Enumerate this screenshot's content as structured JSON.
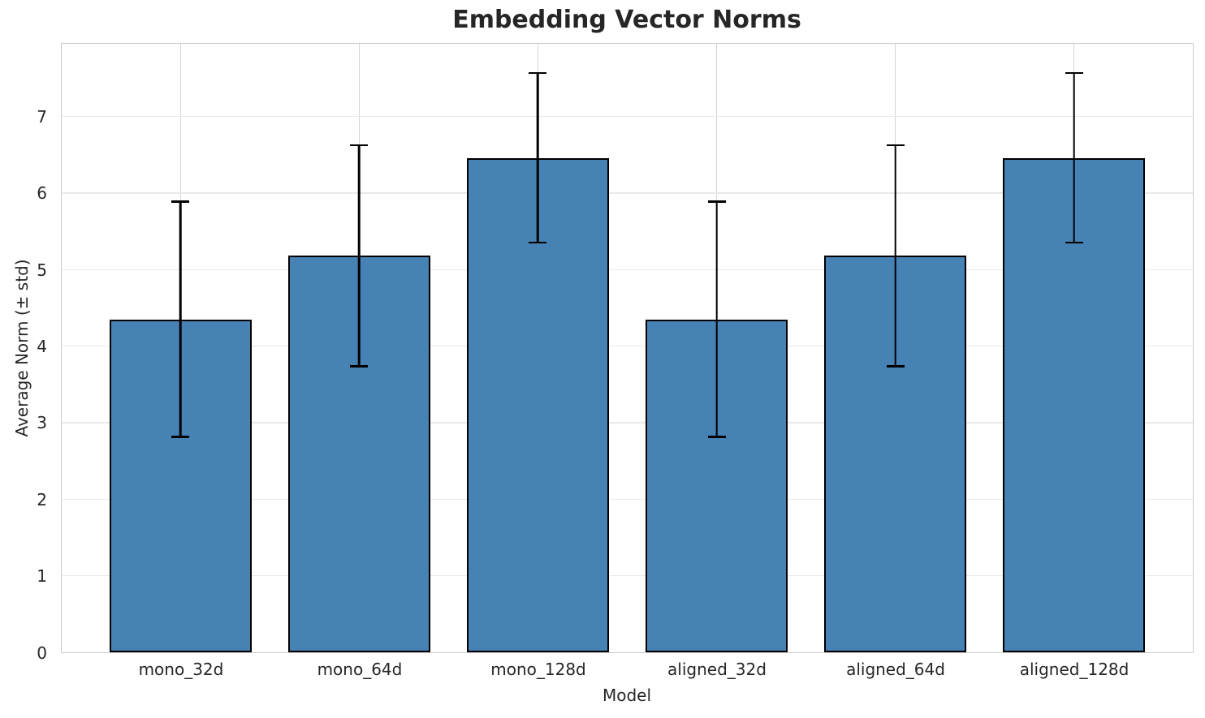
{
  "chart_data": {
    "type": "bar",
    "title": "Embedding Vector Norms",
    "xlabel": "Model",
    "ylabel": "Average Norm (± std)",
    "categories": [
      "mono_32d",
      "mono_64d",
      "mono_128d",
      "aligned_32d",
      "aligned_64d",
      "aligned_128d"
    ],
    "values": [
      4.35,
      5.18,
      6.46,
      4.35,
      5.18,
      6.46
    ],
    "errors": [
      1.55,
      1.46,
      1.12,
      1.55,
      1.46,
      1.12
    ],
    "yticks": [
      0,
      1,
      2,
      3,
      4,
      5,
      6,
      7
    ],
    "ylim": [
      0,
      7.95
    ],
    "grid": true,
    "legend": false,
    "bar_color": "#4682b4",
    "bar_edge_color": "#000000",
    "error_color": "#000000",
    "grid_color_horizontal": "#e9e9e9",
    "grid_color_vertical": "#d5d5d5",
    "spine_color": "#cbcbcb",
    "text_color": "#262626"
  }
}
